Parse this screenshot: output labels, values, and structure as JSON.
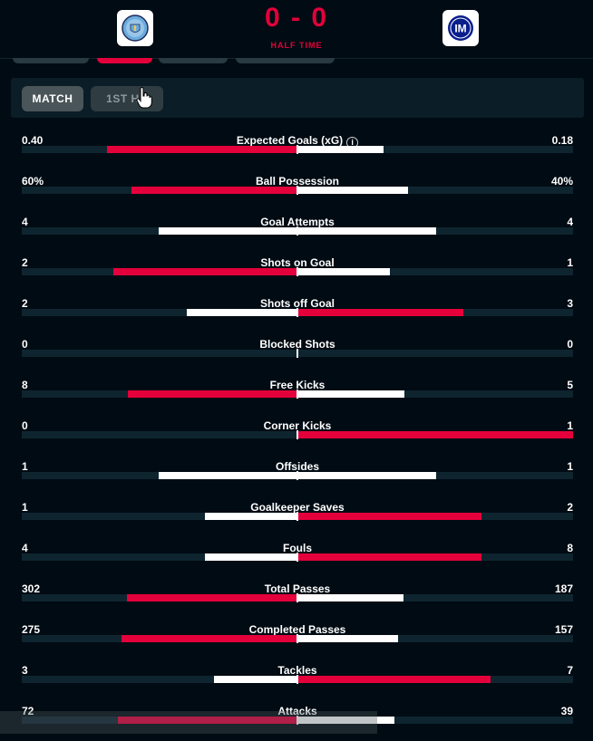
{
  "header": {
    "score": "0 - 0",
    "period": "HALF TIME",
    "home_crest": "manchester-city-crest",
    "away_crest": "inter-crest"
  },
  "tabs": {
    "match": "MATCH",
    "first_half": "1ST HA"
  },
  "colors": {
    "home": "#e4003b",
    "away": "#ffffff",
    "track": "#0e2530",
    "bg": "#010b13"
  },
  "stats": [
    {
      "label": "Expected Goals (xG)",
      "home": "0.40",
      "away": "0.18",
      "hf": 0.69,
      "af": 0.31,
      "info": true
    },
    {
      "label": "Ball Possession",
      "home": "60%",
      "away": "40%",
      "hf": 0.6,
      "af": 0.4
    },
    {
      "label": "Goal Attempts",
      "home": "4",
      "away": "4",
      "hf": 0.5,
      "af": 0.5
    },
    {
      "label": "Shots on Goal",
      "home": "2",
      "away": "1",
      "hf": 0.667,
      "af": 0.333
    },
    {
      "label": "Shots off Goal",
      "home": "2",
      "away": "3",
      "hf": 0.4,
      "af": 0.6
    },
    {
      "label": "Blocked Shots",
      "home": "0",
      "away": "0",
      "hf": 0,
      "af": 0
    },
    {
      "label": "Free Kicks",
      "home": "8",
      "away": "5",
      "hf": 0.615,
      "af": 0.385
    },
    {
      "label": "Corner Kicks",
      "home": "0",
      "away": "1",
      "hf": 0,
      "af": 1
    },
    {
      "label": "Offsides",
      "home": "1",
      "away": "1",
      "hf": 0.5,
      "af": 0.5
    },
    {
      "label": "Goalkeeper Saves",
      "home": "1",
      "away": "2",
      "hf": 0.333,
      "af": 0.667
    },
    {
      "label": "Fouls",
      "home": "4",
      "away": "8",
      "hf": 0.333,
      "af": 0.667
    },
    {
      "label": "Total Passes",
      "home": "302",
      "away": "187",
      "hf": 0.618,
      "af": 0.382
    },
    {
      "label": "Completed Passes",
      "home": "275",
      "away": "157",
      "hf": 0.637,
      "af": 0.363
    },
    {
      "label": "Tackles",
      "home": "3",
      "away": "7",
      "hf": 0.3,
      "af": 0.7
    },
    {
      "label": "Attacks",
      "home": "72",
      "away": "39",
      "hf": 0.649,
      "af": 0.351
    }
  ]
}
